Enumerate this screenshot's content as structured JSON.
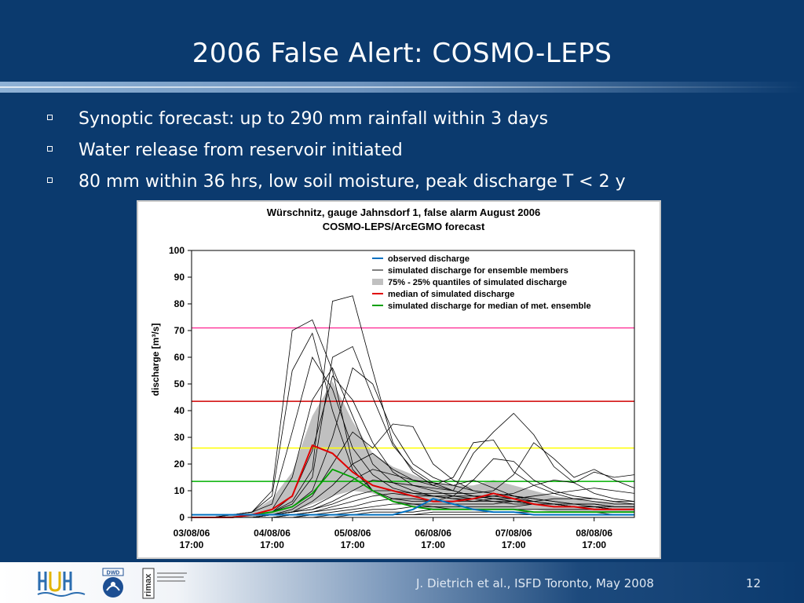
{
  "slide": {
    "title": "2006 False Alert: COSMO-LEPS",
    "bullets": [
      "Synoptic forecast: up to 290 mm rainfall within 3 days",
      "Water release from reservoir initiated",
      "80 mm within 36 hrs, low soil moisture, peak discharge T < 2 y"
    ],
    "footer": "J. Dietrich et al., ISFD Toronto, May 2008",
    "page_number": "12",
    "logos": [
      "hydrology-institute-logo",
      "dwd-logo",
      "rimax-logo"
    ],
    "logo_text": {
      "dwd": "DWD",
      "rimax": "rimax"
    }
  },
  "chart_data": {
    "type": "line",
    "title": "Würschnitz, gauge Jahnsdorf 1, false alarm August 2006",
    "subtitle": "COSMO-LEPS/ArcEGMO forecast",
    "xlabel": "",
    "ylabel": "discharge [m³/s]",
    "ylim": [
      0,
      100
    ],
    "yticks": [
      0,
      10,
      20,
      30,
      40,
      50,
      60,
      70,
      80,
      90,
      100
    ],
    "xlim_hours": [
      0,
      132
    ],
    "xticks": [
      {
        "date": "03/08/06",
        "time": "17:00"
      },
      {
        "date": "04/08/06",
        "time": "17:00"
      },
      {
        "date": "05/08/06",
        "time": "17:00"
      },
      {
        "date": "06/08/06",
        "time": "17:00"
      },
      {
        "date": "07/08/06",
        "time": "17:00"
      },
      {
        "date": "08/08/06",
        "time": "17:00"
      }
    ],
    "grid": false,
    "legend_position": "top-right",
    "colors": {
      "observed": "#0070c0",
      "members": "#000000",
      "quantile_band": "#c0c0c0",
      "median": "#e00000",
      "met_median": "#00a000"
    },
    "legend": [
      {
        "key": "observed",
        "label": "observed discharge"
      },
      {
        "key": "members",
        "label": "simulated discharge for ensemble members"
      },
      {
        "key": "quantile_band",
        "label": "75% - 25% quantiles of simulated discharge"
      },
      {
        "key": "median",
        "label": "median of simulated discharge"
      },
      {
        "key": "met_median",
        "label": "simulated discharge for median of met. ensemble"
      }
    ],
    "thresholds": [
      {
        "value": 71,
        "color": "#ff40a0"
      },
      {
        "value": 43.5,
        "color": "#d00000"
      },
      {
        "value": 26,
        "color": "#ffff00"
      },
      {
        "value": 13.5,
        "color": "#00b000"
      }
    ],
    "x_hours": [
      0,
      6,
      12,
      18,
      24,
      30,
      36,
      42,
      48,
      54,
      60,
      66,
      72,
      78,
      84,
      90,
      96,
      102,
      108,
      114,
      120,
      126,
      132
    ],
    "observed": [
      1,
      1,
      1,
      1,
      1,
      1,
      1,
      1,
      1,
      1,
      1,
      3,
      7,
      5,
      3,
      2,
      2,
      1,
      1,
      1,
      1,
      1,
      1
    ],
    "q75": [
      0,
      0,
      1,
      2,
      7,
      17,
      38,
      51,
      36,
      24,
      19,
      16,
      13,
      12,
      12,
      14,
      12,
      10,
      8,
      7,
      6,
      6,
      5
    ],
    "q25": [
      0,
      0,
      0,
      0,
      1,
      2,
      5,
      8,
      10,
      9,
      6,
      4,
      3,
      3,
      3,
      3,
      3,
      3,
      2,
      2,
      2,
      2,
      2
    ],
    "median": [
      0,
      0,
      0,
      1,
      3,
      8,
      27,
      24,
      17,
      12,
      10,
      8,
      6,
      6,
      7,
      9,
      7,
      5,
      4,
      4,
      3,
      3,
      3
    ],
    "met_median": [
      0,
      0,
      0,
      1,
      2,
      4,
      9,
      18,
      15,
      10,
      6,
      4,
      3,
      3,
      3,
      3,
      3,
      2,
      2,
      2,
      2,
      2,
      2
    ],
    "members": [
      [
        0,
        0,
        1,
        2,
        10,
        70,
        74,
        55,
        20,
        10,
        6,
        5,
        4,
        3,
        3,
        3,
        3,
        2,
        2,
        2,
        2,
        1,
        1
      ],
      [
        0,
        0,
        1,
        2,
        8,
        55,
        69,
        40,
        18,
        10,
        7,
        6,
        6,
        8,
        14,
        11,
        8,
        6,
        5,
        4,
        4,
        3,
        3
      ],
      [
        0,
        0,
        1,
        2,
        5,
        32,
        60,
        48,
        26,
        16,
        11,
        9,
        8,
        7,
        7,
        8,
        7,
        6,
        5,
        4,
        4,
        3,
        3
      ],
      [
        0,
        0,
        0,
        1,
        3,
        15,
        44,
        56,
        38,
        20,
        13,
        10,
        8,
        7,
        6,
        6,
        5,
        5,
        4,
        4,
        3,
        3,
        3
      ],
      [
        0,
        0,
        0,
        1,
        2,
        8,
        25,
        53,
        44,
        28,
        17,
        12,
        10,
        8,
        7,
        6,
        6,
        5,
        5,
        4,
        4,
        3,
        3
      ],
      [
        0,
        0,
        0,
        1,
        2,
        6,
        18,
        81,
        83,
        55,
        28,
        17,
        12,
        10,
        8,
        7,
        6,
        5,
        5,
        4,
        4,
        3,
        3
      ],
      [
        0,
        0,
        0,
        1,
        2,
        5,
        15,
        60,
        64,
        45,
        27,
        18,
        13,
        10,
        8,
        7,
        6,
        5,
        5,
        4,
        4,
        3,
        3
      ],
      [
        0,
        0,
        0,
        1,
        2,
        4,
        10,
        30,
        56,
        50,
        32,
        20,
        15,
        12,
        10,
        9,
        8,
        7,
        6,
        5,
        5,
        4,
        4
      ],
      [
        0,
        0,
        0,
        0,
        1,
        3,
        8,
        20,
        32,
        26,
        35,
        34,
        20,
        14,
        10,
        9,
        8,
        7,
        6,
        5,
        5,
        4,
        4
      ],
      [
        0,
        0,
        0,
        0,
        1,
        2,
        6,
        12,
        20,
        24,
        18,
        14,
        12,
        15,
        28,
        29,
        17,
        12,
        9,
        7,
        6,
        5,
        5
      ],
      [
        0,
        0,
        0,
        0,
        1,
        2,
        4,
        8,
        14,
        18,
        16,
        14,
        13,
        12,
        14,
        22,
        21,
        14,
        10,
        8,
        7,
        6,
        5
      ],
      [
        0,
        0,
        0,
        0,
        1,
        2,
        3,
        6,
        10,
        14,
        13,
        12,
        11,
        10,
        24,
        32,
        39,
        31,
        19,
        13,
        9,
        7,
        6
      ],
      [
        0,
        0,
        0,
        0,
        1,
        2,
        3,
        5,
        8,
        10,
        10,
        9,
        9,
        9,
        9,
        10,
        16,
        28,
        22,
        15,
        18,
        14,
        11
      ],
      [
        0,
        0,
        0,
        0,
        0,
        1,
        2,
        4,
        6,
        8,
        9,
        8,
        8,
        8,
        8,
        8,
        9,
        12,
        14,
        13,
        17,
        15,
        16
      ],
      [
        0,
        0,
        0,
        0,
        0,
        1,
        2,
        3,
        4,
        6,
        7,
        7,
        6,
        6,
        6,
        7,
        7,
        8,
        9,
        10,
        11,
        10,
        9
      ],
      [
        0,
        0,
        0,
        0,
        0,
        1,
        1,
        2,
        3,
        4,
        5,
        5,
        5,
        5,
        5,
        5,
        6,
        6,
        7,
        7,
        7,
        6,
        6
      ],
      [
        0,
        0,
        0,
        0,
        0,
        0,
        1,
        1,
        2,
        3,
        3,
        4,
        4,
        4,
        4,
        4,
        4,
        5,
        5,
        5,
        4,
        4,
        4
      ],
      [
        0,
        0,
        0,
        0,
        0,
        0,
        1,
        1,
        1,
        2,
        2,
        2,
        3,
        3,
        3,
        3,
        3,
        3,
        3,
        3,
        3,
        3,
        3
      ],
      [
        0,
        0,
        0,
        0,
        0,
        0,
        0,
        1,
        1,
        1,
        1,
        1,
        2,
        2,
        2,
        2,
        2,
        2,
        2,
        2,
        2,
        2,
        2
      ],
      [
        0,
        0,
        0,
        0,
        0,
        0,
        0,
        0,
        1,
        1,
        1,
        1,
        1,
        1,
        1,
        1,
        1,
        1,
        1,
        1,
        1,
        1,
        1
      ]
    ]
  }
}
